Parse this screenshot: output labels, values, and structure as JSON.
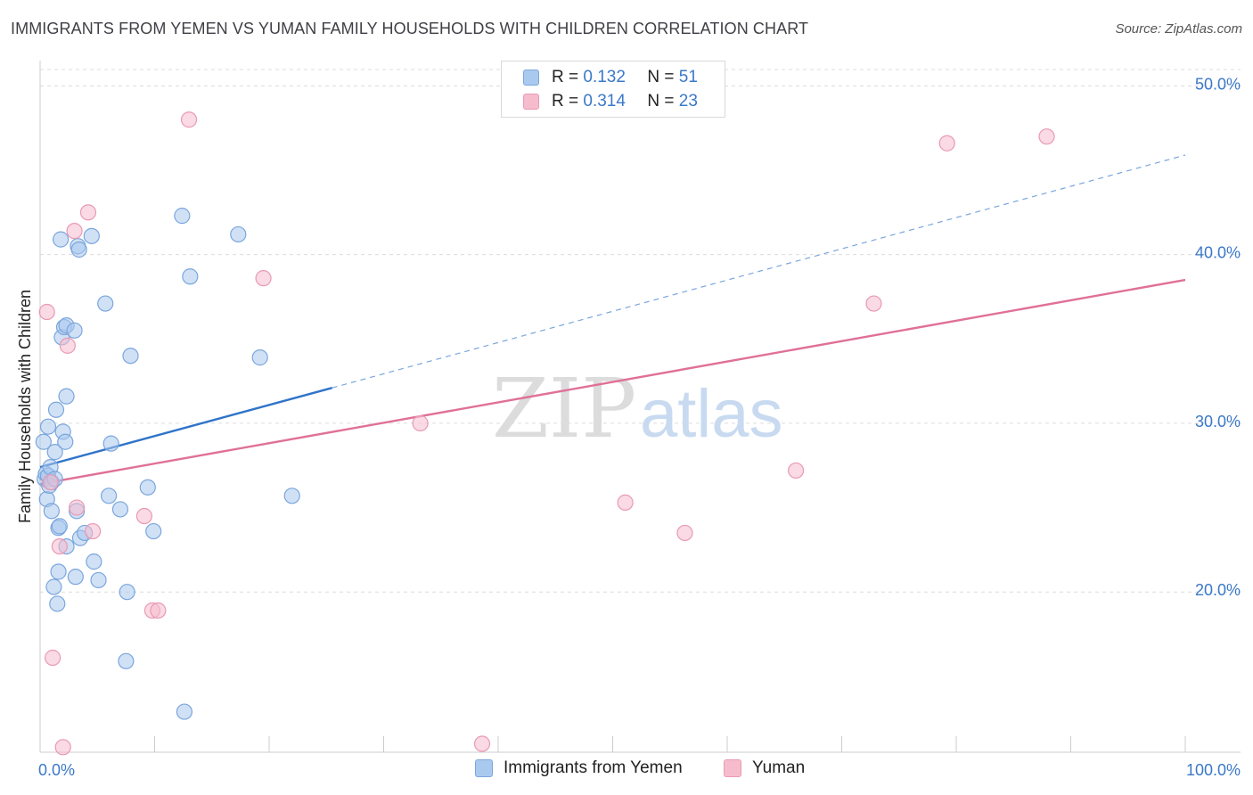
{
  "title": "IMMIGRANTS FROM YEMEN VS YUMAN FAMILY HOUSEHOLDS WITH CHILDREN CORRELATION CHART",
  "source": "Source: ZipAtlas.com",
  "watermark": {
    "zip": "ZIP",
    "atlas": "atlas"
  },
  "legend": {
    "series1": {
      "r_label": "R = ",
      "r_value": "0.132",
      "n_label": "N = ",
      "n_value": "51"
    },
    "series2": {
      "r_label": "R = ",
      "r_value": "0.314",
      "n_label": "N = ",
      "n_value": "23"
    }
  },
  "bottom_legend": {
    "series1": "Immigrants from Yemen",
    "series2": "Yuman"
  },
  "colors": {
    "blue_fill": "#a9c9ef",
    "blue_stroke": "#7ba6dc",
    "blue_line": "#2f74c9",
    "pink_fill": "#f6bccd",
    "pink_stroke": "#e99ab3",
    "pink_line": "#e07098",
    "tick_text": "#3b78c9",
    "grid": "#dcdcdc"
  },
  "chart_data": {
    "type": "scatter",
    "ylabel": "Family Households with Children",
    "xlim": [
      0,
      100
    ],
    "ylim": [
      10.5,
      51.5
    ],
    "x_ticks": [
      "0.0%",
      "100.0%"
    ],
    "y_ticks": [
      {
        "value": 20,
        "label": "20.0%"
      },
      {
        "value": 30,
        "label": "30.0%"
      },
      {
        "value": 40,
        "label": "40.0%"
      },
      {
        "value": 50,
        "label": "50.0%"
      }
    ],
    "grid": true,
    "legend_position": "top-center",
    "series": [
      {
        "name": "Immigrants from Yemen",
        "color": "blue",
        "points": [
          [
            0.3,
            28.9
          ],
          [
            0.4,
            26.7
          ],
          [
            0.5,
            27.0
          ],
          [
            0.6,
            25.5
          ],
          [
            0.7,
            29.8
          ],
          [
            0.7,
            26.9
          ],
          [
            0.8,
            26.3
          ],
          [
            0.9,
            27.4
          ],
          [
            1.0,
            26.5
          ],
          [
            1.0,
            24.8
          ],
          [
            1.2,
            20.3
          ],
          [
            1.3,
            28.3
          ],
          [
            1.3,
            26.7
          ],
          [
            1.4,
            30.8
          ],
          [
            1.5,
            19.3
          ],
          [
            1.6,
            23.8
          ],
          [
            1.6,
            21.2
          ],
          [
            1.7,
            23.9
          ],
          [
            1.8,
            40.9
          ],
          [
            1.9,
            35.1
          ],
          [
            2.0,
            29.5
          ],
          [
            2.1,
            35.7
          ],
          [
            2.2,
            28.9
          ],
          [
            2.3,
            31.6
          ],
          [
            2.3,
            22.7
          ],
          [
            2.3,
            35.8
          ],
          [
            3.0,
            35.5
          ],
          [
            3.1,
            20.9
          ],
          [
            3.2,
            24.8
          ],
          [
            3.3,
            40.5
          ],
          [
            3.4,
            40.3
          ],
          [
            3.5,
            23.2
          ],
          [
            3.9,
            23.5
          ],
          [
            4.5,
            41.1
          ],
          [
            4.7,
            21.8
          ],
          [
            5.1,
            20.7
          ],
          [
            5.7,
            37.1
          ],
          [
            6.0,
            25.7
          ],
          [
            6.2,
            28.8
          ],
          [
            7.0,
            24.9
          ],
          [
            7.5,
            15.9
          ],
          [
            7.6,
            20.0
          ],
          [
            7.9,
            34.0
          ],
          [
            9.4,
            26.2
          ],
          [
            9.9,
            23.6
          ],
          [
            12.4,
            42.3
          ],
          [
            12.6,
            12.9
          ],
          [
            13.1,
            38.7
          ],
          [
            17.3,
            41.2
          ],
          [
            19.2,
            33.9
          ],
          [
            22.0,
            25.7
          ]
        ]
      },
      {
        "name": "Yuman",
        "color": "pink",
        "points": [
          [
            0.6,
            36.6
          ],
          [
            1.1,
            16.1
          ],
          [
            1.7,
            22.7
          ],
          [
            2.0,
            10.8
          ],
          [
            2.4,
            34.6
          ],
          [
            3.0,
            41.4
          ],
          [
            3.2,
            25.0
          ],
          [
            4.2,
            42.5
          ],
          [
            4.6,
            23.6
          ],
          [
            9.1,
            24.5
          ],
          [
            9.8,
            18.9
          ],
          [
            10.3,
            18.9
          ],
          [
            13.0,
            48.0
          ],
          [
            19.5,
            38.6
          ],
          [
            33.2,
            30.0
          ],
          [
            38.6,
            11.0
          ],
          [
            51.1,
            25.3
          ],
          [
            56.3,
            23.5
          ],
          [
            66.0,
            27.2
          ],
          [
            72.8,
            37.1
          ],
          [
            79.2,
            46.6
          ],
          [
            87.9,
            47.0
          ],
          [
            0.9,
            26.5
          ]
        ]
      }
    ],
    "trendlines": [
      {
        "series": "Immigrants from Yemen",
        "x": [
          0,
          25.5
        ],
        "y": [
          27.4,
          32.1
        ],
        "extended_x": [
          25.5,
          100
        ],
        "extended_y": [
          32.1,
          45.9
        ],
        "style_extended": "dashed"
      },
      {
        "series": "Yuman",
        "x": [
          0,
          100
        ],
        "y": [
          26.4,
          38.5
        ]
      }
    ]
  }
}
